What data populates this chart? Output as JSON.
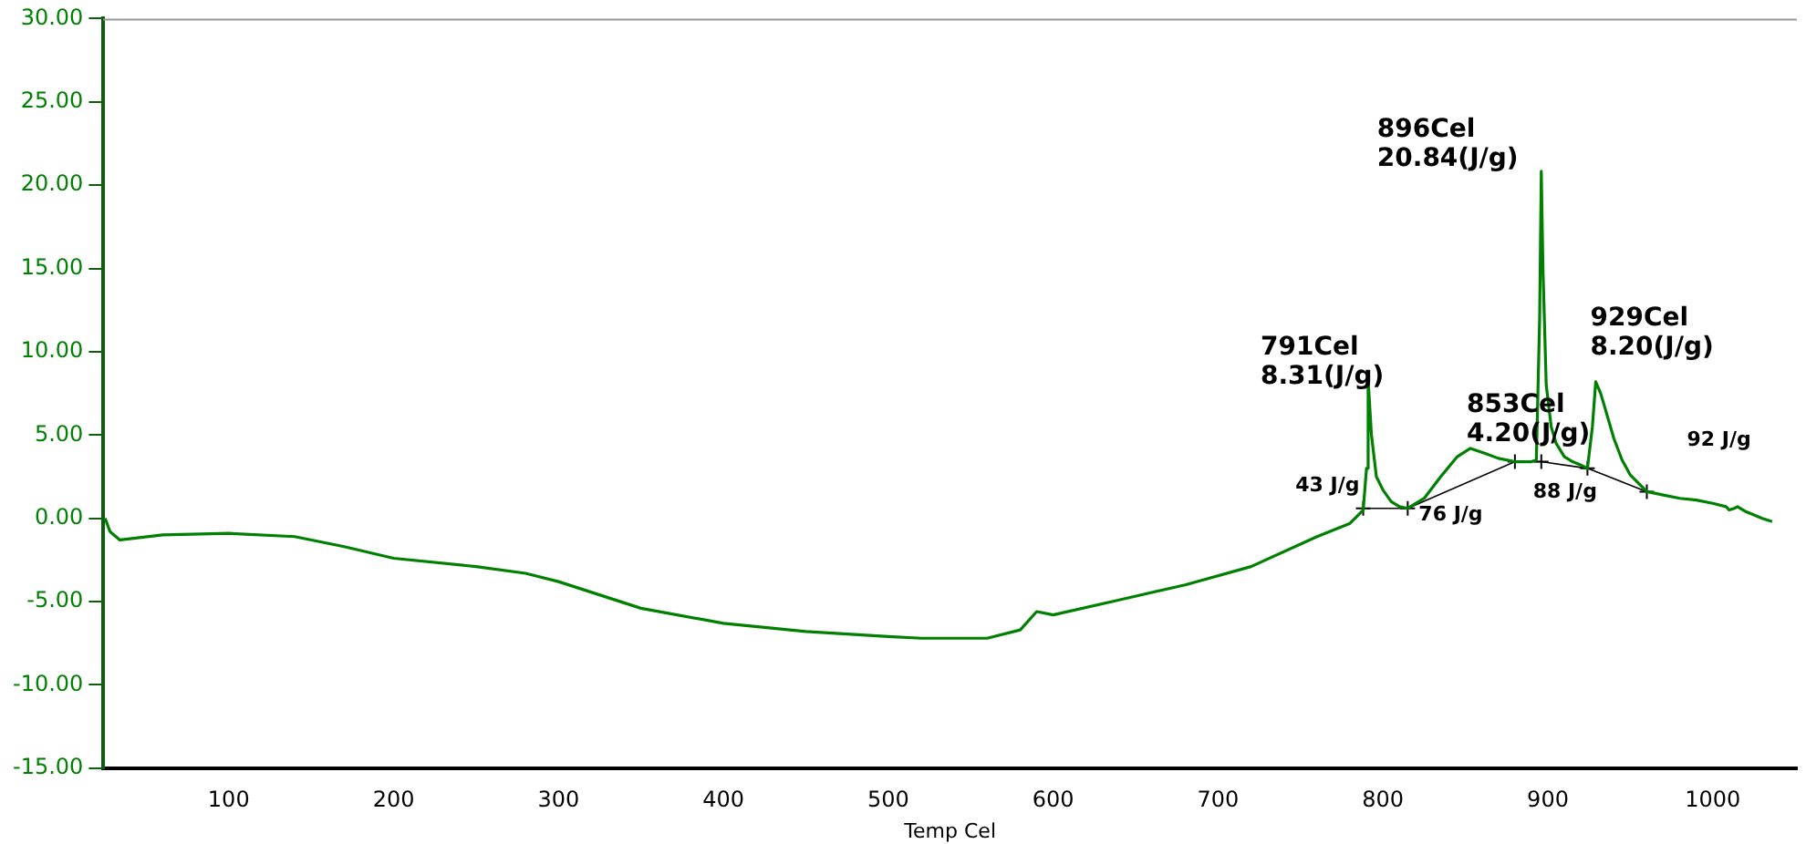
{
  "chart_data": {
    "type": "line",
    "xlabel": "Temp Cel",
    "xlim": [
      24,
      1051
    ],
    "ylim": [
      -15,
      30
    ],
    "xticks": [
      100,
      200,
      300,
      400,
      500,
      600,
      700,
      800,
      900,
      1000
    ],
    "yticks": [
      {
        "value": -15,
        "label": "-15.00"
      },
      {
        "value": -10,
        "label": "-10.00"
      },
      {
        "value": -5,
        "label": "-5.00"
      },
      {
        "value": 0,
        "label": "0.00"
      },
      {
        "value": 5,
        "label": "5.00"
      },
      {
        "value": 10,
        "label": "10.00"
      },
      {
        "value": 15,
        "label": "15.00"
      },
      {
        "value": 20,
        "label": "20.00"
      },
      {
        "value": 25,
        "label": "25.00"
      },
      {
        "value": 30,
        "label": "30.00"
      }
    ],
    "grid": false,
    "legend": false,
    "series": [
      {
        "color": "#008000",
        "marker": "none",
        "line_style": "solid",
        "x": [
          25,
          28,
          34,
          60,
          100,
          140,
          170,
          200,
          250,
          280,
          300,
          350,
          400,
          450,
          500,
          520,
          560,
          580,
          590,
          600,
          640,
          680,
          720,
          760,
          780,
          788,
          790,
          791,
          793,
          796,
          800,
          805,
          810,
          815,
          825,
          835,
          845,
          853,
          862,
          870,
          880,
          890,
          893,
          895,
          896,
          897,
          899,
          902,
          905,
          910,
          915,
          920,
          924,
          927,
          929,
          932,
          935,
          940,
          945,
          950,
          960,
          970,
          980,
          990,
          1000,
          1008,
          1010,
          1013,
          1015,
          1020,
          1030,
          1036
        ],
        "values": [
          0,
          -0.8,
          -1.3,
          -1.0,
          -0.9,
          -1.1,
          -1.7,
          -2.4,
          -2.9,
          -3.3,
          -3.8,
          -5.4,
          -6.3,
          -6.8,
          -7.1,
          -7.2,
          -7.2,
          -6.7,
          -5.6,
          -5.8,
          -4.9,
          -4.0,
          -2.9,
          -1.1,
          -0.3,
          0.5,
          3,
          8.31,
          5,
          2.5,
          1.7,
          1.0,
          0.7,
          0.6,
          1.2,
          2.5,
          3.7,
          4.2,
          3.9,
          3.6,
          3.4,
          3.4,
          3.5,
          12,
          20.84,
          15,
          8,
          5.5,
          4.5,
          3.7,
          3.4,
          3.2,
          3.0,
          5.5,
          8.2,
          7.5,
          6.5,
          4.8,
          3.5,
          2.6,
          1.6,
          1.4,
          1.2,
          1.1,
          0.9,
          0.7,
          0.5,
          0.6,
          0.7,
          0.4,
          0.0,
          -0.2
        ]
      },
      {
        "color": "#000000",
        "marker": "cross",
        "line_style": "solid",
        "x": [
          788,
          815,
          880,
          896,
          924,
          960
        ],
        "values": [
          0.6,
          0.6,
          3.4,
          3.4,
          3.0,
          1.6
        ]
      }
    ],
    "annotations": [
      {
        "text": "791Cel\n8.31(J/g)",
        "x": 791,
        "y": 8.31
      },
      {
        "text": "853Cel\n4.20(J/g)",
        "x": 853,
        "y": 4.2
      },
      {
        "text": "896Cel\n20.84(J/g)",
        "x": 896,
        "y": 20.84
      },
      {
        "text": "929Cel\n8.20(J/g)",
        "x": 929,
        "y": 8.2
      },
      {
        "text": "43 J/g",
        "x": 788,
        "y": 0.6
      },
      {
        "text": "76 J/g",
        "x": 815,
        "y": 0.6
      },
      {
        "text": "88 J/g",
        "x": 896,
        "y": 3.4
      },
      {
        "text": "92 J/g",
        "x": 960,
        "y": 1.6
      }
    ]
  }
}
